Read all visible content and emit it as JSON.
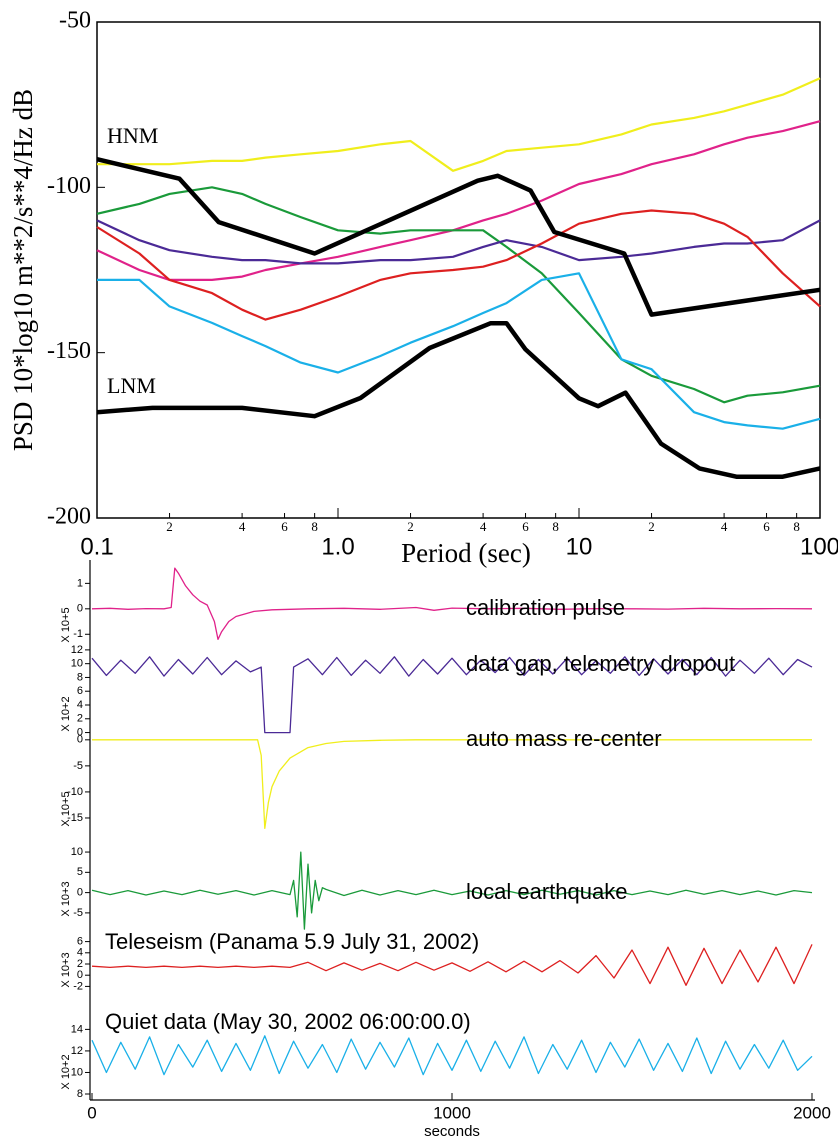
{
  "chart_data": [
    {
      "type": "line",
      "xscale": "log",
      "ylabel": "PSD 10*log10 m**2/s**4/Hz dB",
      "xlabel": "Period (sec)",
      "xlim": [
        0.1,
        100
      ],
      "ylim": [
        -200,
        -50
      ],
      "xticks": [
        0.1,
        {
          "value": 1,
          "label": "1.0"
        },
        10,
        100
      ],
      "xminorticks": [
        {
          "value": 0.2,
          "label": "2"
        },
        {
          "value": 0.4,
          "label": "4"
        },
        {
          "value": 0.6,
          "label": "6"
        },
        {
          "value": 0.8,
          "label": "8"
        },
        {
          "value": 2,
          "label": "2"
        },
        {
          "value": 4,
          "label": "4"
        },
        {
          "value": 6,
          "label": "6"
        },
        {
          "value": 8,
          "label": "8"
        },
        {
          "value": 20,
          "label": "2"
        },
        {
          "value": 40,
          "label": "4"
        },
        {
          "value": 60,
          "label": "6"
        },
        {
          "value": 80,
          "label": "8"
        }
      ],
      "yticks": [
        -200,
        -150,
        -100,
        -50
      ],
      "x": [
        0.1,
        0.15,
        0.2,
        0.3,
        0.4,
        0.5,
        0.7,
        1,
        1.5,
        2,
        3,
        4,
        5,
        7,
        10,
        15,
        20,
        30,
        40,
        50,
        70,
        100
      ],
      "series": [
        {
          "name": "HNM",
          "color": "#000000",
          "x": [
            0.1,
            0.22,
            0.32,
            0.8,
            3.8,
            4.6,
            6.3,
            7.9,
            15.4,
            20,
            100
          ],
          "values": [
            -91.5,
            -97.4,
            -110.5,
            -120,
            -98,
            -96.5,
            -101,
            -113.5,
            -120,
            -138.5,
            -131
          ]
        },
        {
          "name": "LNM",
          "color": "#000000",
          "x": [
            0.1,
            0.17,
            0.4,
            0.8,
            1.24,
            2.4,
            4.3,
            5,
            6,
            10,
            12,
            15.6,
            21.9,
            31.6,
            45,
            70,
            100
          ],
          "values": [
            -168,
            -166.7,
            -166.7,
            -169.2,
            -163.7,
            -148.6,
            -141.1,
            -141.1,
            -149,
            -163.8,
            -166.2,
            -162.1,
            -177.5,
            -185,
            -187.5,
            -187.5,
            -185
          ]
        },
        {
          "color": "#f0ee1c",
          "values": [
            -93,
            -93,
            -93,
            -92,
            -92,
            -91,
            -90,
            -89,
            -87,
            -86,
            -95,
            -92,
            -89,
            -88,
            -87,
            -84,
            -81,
            -79,
            -77,
            -75,
            -72,
            -67
          ]
        },
        {
          "color": "#e0228a",
          "values": [
            -119,
            -125,
            -128,
            -128,
            -127,
            -125,
            -123,
            -121,
            -118,
            -116,
            -113,
            -110,
            -108,
            -104,
            -99,
            -96,
            -93,
            -90,
            -87,
            -85,
            -83,
            -80
          ]
        },
        {
          "color": "#1a9a3a",
          "values": [
            -108,
            -105,
            -102,
            -100,
            -102,
            -105,
            -109,
            -113,
            -114,
            -113,
            -113,
            -113,
            -118,
            -126,
            -138,
            -152,
            -157,
            -161,
            -165,
            -163,
            -162,
            -160
          ]
        },
        {
          "color": "#4b2a96",
          "values": [
            -110,
            -116,
            -119,
            -121,
            -122,
            -122,
            -123,
            -123,
            -122,
            -122,
            -121,
            -118,
            -116,
            -118,
            -122,
            -121,
            -120,
            -118,
            -117,
            -117,
            -116,
            -110
          ]
        },
        {
          "color": "#dd2020",
          "values": [
            -112,
            -120,
            -128,
            -132,
            -137,
            -140,
            -137,
            -133,
            -128,
            -126,
            -125,
            -124,
            -122,
            -117,
            -111,
            -108,
            -107,
            -108,
            -111,
            -115,
            -126,
            -136
          ]
        },
        {
          "color": "#1ab0e8",
          "values": [
            -128,
            -128,
            -136,
            -141,
            -145,
            -148,
            -153,
            -156,
            -151,
            -147,
            -142,
            -138,
            -135,
            -128,
            -126,
            -152,
            -155,
            -168,
            -171,
            -172,
            -173,
            -170
          ]
        }
      ]
    },
    {
      "type": "line",
      "xlabel": "seconds",
      "xlim": [
        0,
        2000
      ],
      "xticks": [
        0,
        1000,
        2000
      ],
      "panels": [
        {
          "annotation": "calibration pulse",
          "ylabel": "X 10+5",
          "color": "#e0228a",
          "ylim": [
            -1.5,
            1.8
          ],
          "yticks": [
            1,
            0,
            -1
          ],
          "x": [
            0,
            50,
            100,
            150,
            200,
            220,
            230,
            240,
            260,
            280,
            300,
            320,
            340,
            350,
            360,
            380,
            400,
            450,
            500,
            600,
            700,
            800,
            900,
            950,
            1000,
            1100,
            1200,
            1300,
            1400,
            1500,
            1600,
            1700,
            1800,
            1900,
            2000
          ],
          "values": [
            0,
            0.02,
            -0.02,
            0.01,
            0,
            0.05,
            1.6,
            1.4,
            0.9,
            0.55,
            0.3,
            0.15,
            -0.5,
            -1.2,
            -0.9,
            -0.5,
            -0.3,
            -0.1,
            -0.04,
            0,
            0.02,
            -0.02,
            0.05,
            -0.06,
            0.03,
            0,
            0.02,
            -0.02,
            0.01,
            0,
            -0.01,
            0.02,
            0,
            0.01,
            0
          ]
        },
        {
          "annotation": "data gap, telemetry dropout",
          "ylabel": "X 10+2",
          "color": "#4b2a96",
          "ylim": [
            -0.5,
            13
          ],
          "yticks": [
            12,
            10,
            8,
            6,
            4,
            2,
            0
          ],
          "x": [
            0,
            40,
            80,
            120,
            160,
            200,
            240,
            280,
            320,
            360,
            400,
            440,
            470,
            480,
            550,
            560,
            600,
            640,
            680,
            720,
            760,
            800,
            840,
            880,
            920,
            960,
            1000,
            1040,
            1080,
            1120,
            1160,
            1200,
            1240,
            1280,
            1320,
            1360,
            1400,
            1440,
            1480,
            1520,
            1560,
            1600,
            1640,
            1680,
            1720,
            1760,
            1800,
            1840,
            1880,
            1920,
            1960,
            2000
          ],
          "values": [
            10.8,
            8.3,
            10.5,
            8.6,
            11,
            8.2,
            10.6,
            8.5,
            10.9,
            8.4,
            10.4,
            8.8,
            9.5,
            0,
            0,
            9.5,
            10.7,
            8.4,
            10.9,
            8.3,
            10.5,
            8.6,
            11,
            8.2,
            10.6,
            8.5,
            10.8,
            8.4,
            10.5,
            8.7,
            10.9,
            8.3,
            10.6,
            8.5,
            10.8,
            8.4,
            10.4,
            8.6,
            11,
            8.3,
            10.7,
            8.5,
            10.6,
            8.4,
            10.9,
            8.2,
            10.5,
            8.6,
            10.8,
            8.4,
            10.6,
            9.5
          ]
        },
        {
          "annotation": "auto mass re-center",
          "ylabel": "X 10+5",
          "color": "#f0ee1c",
          "ylim": [
            -17.5,
            1.5
          ],
          "yticks": [
            0,
            -5,
            -10,
            -15
          ],
          "x": [
            0,
            100,
            200,
            300,
            400,
            460,
            470,
            480,
            490,
            500,
            520,
            550,
            600,
            650,
            700,
            800,
            900,
            1000,
            1200,
            1400,
            1600,
            1800,
            2000
          ],
          "values": [
            0,
            0,
            0,
            0,
            0,
            0,
            -3,
            -17,
            -12,
            -9,
            -6,
            -3.5,
            -1.5,
            -0.7,
            -0.3,
            -0.1,
            0,
            0,
            0,
            0,
            0,
            0,
            0
          ]
        },
        {
          "annotation": "local earthquake",
          "ylabel": "X 10+3",
          "color": "#1a9a3a",
          "ylim": [
            -7,
            11
          ],
          "yticks": [
            10,
            5,
            0,
            -5
          ],
          "x": [
            0,
            50,
            100,
            150,
            200,
            250,
            300,
            350,
            400,
            450,
            500,
            550,
            560,
            570,
            580,
            590,
            600,
            610,
            620,
            630,
            640,
            650,
            700,
            750,
            800,
            850,
            900,
            950,
            1000,
            1050,
            1100,
            1150,
            1200,
            1250,
            1300,
            1350,
            1400,
            1450,
            1500,
            1550,
            1600,
            1650,
            1700,
            1750,
            1800,
            1850,
            1900,
            1950,
            2000
          ],
          "values": [
            0.6,
            -0.5,
            0.5,
            -0.6,
            0.4,
            -0.5,
            0.6,
            -0.4,
            0.5,
            -0.6,
            0.5,
            -0.5,
            3,
            -6,
            10,
            -9,
            7,
            -5,
            3,
            -2,
            1.2,
            0.8,
            -0.7,
            0.6,
            -0.6,
            0.5,
            -0.5,
            0.6,
            -0.5,
            0.4,
            -0.6,
            0.5,
            -0.5,
            0.6,
            -0.4,
            0.5,
            -0.6,
            0.5,
            -0.5,
            0.4,
            -0.5,
            0.6,
            -0.4,
            0.5,
            -0.5,
            0.4,
            -0.6,
            0.5,
            0
          ]
        },
        {
          "annotation": "Teleseism (Panama 5.9 July 31, 2002)",
          "ylabel": "X 10+3",
          "color": "#dd2020",
          "ylim": [
            -3,
            7
          ],
          "yticks": [
            6,
            4,
            2,
            0,
            -2
          ],
          "x": [
            0,
            50,
            100,
            150,
            200,
            250,
            300,
            350,
            400,
            450,
            500,
            550,
            600,
            650,
            700,
            750,
            800,
            850,
            900,
            950,
            1000,
            1050,
            1100,
            1150,
            1200,
            1250,
            1300,
            1350,
            1400,
            1450,
            1500,
            1550,
            1600,
            1650,
            1700,
            1750,
            1800,
            1850,
            1900,
            1950,
            2000
          ],
          "values": [
            1.6,
            1.4,
            1.6,
            1.4,
            1.6,
            1.4,
            1.6,
            1.4,
            1.6,
            1.4,
            1.6,
            1.4,
            2.3,
            0.8,
            2.2,
            0.9,
            2.1,
            0.8,
            2.3,
            0.9,
            2.2,
            0.7,
            2.4,
            0.6,
            2.5,
            0.6,
            2.6,
            0.4,
            3.5,
            -0.5,
            4.5,
            -1.5,
            5,
            -1.8,
            4.8,
            -1.5,
            4.5,
            -1.2,
            5,
            -1.5,
            5.5
          ]
        },
        {
          "annotation": "Quiet data (May 30, 2002 06:00:00.0)",
          "ylabel": "X 10+2",
          "color": "#1ab0e8",
          "ylim": [
            8,
            14.5
          ],
          "yticks": [
            14,
            12,
            10,
            8
          ],
          "x": [
            0,
            40,
            80,
            120,
            160,
            200,
            240,
            280,
            320,
            360,
            400,
            440,
            480,
            520,
            560,
            600,
            640,
            680,
            720,
            760,
            800,
            840,
            880,
            920,
            960,
            1000,
            1040,
            1080,
            1120,
            1160,
            1200,
            1240,
            1280,
            1320,
            1360,
            1400,
            1440,
            1480,
            1520,
            1560,
            1600,
            1640,
            1680,
            1720,
            1760,
            1800,
            1840,
            1880,
            1920,
            1960,
            2000
          ],
          "values": [
            13,
            10,
            12.8,
            10.3,
            13.3,
            9.8,
            12.6,
            10.5,
            13,
            10.1,
            12.7,
            10.2,
            13.4,
            9.9,
            12.9,
            10.4,
            12.6,
            10,
            13.1,
            10.3,
            12.8,
            10.5,
            13.2,
            9.8,
            12.7,
            10.2,
            13,
            10.1,
            12.9,
            10.4,
            13.3,
            9.9,
            12.6,
            10.3,
            13,
            10,
            12.8,
            10.5,
            13.1,
            10.2,
            12.7,
            10.1,
            13.2,
            9.9,
            12.9,
            10.3,
            12.6,
            10.4,
            13,
            10.2,
            11.5
          ]
        }
      ]
    }
  ]
}
